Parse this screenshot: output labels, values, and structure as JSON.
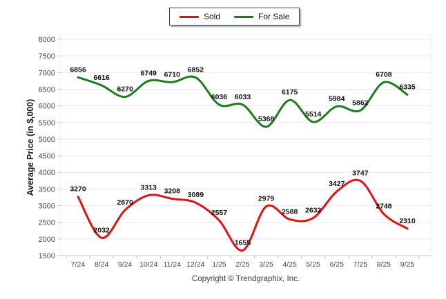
{
  "legend": {
    "items": [
      {
        "label": "Sold",
        "color": "#e01212"
      },
      {
        "label": "For Sale",
        "color": "#1e7a1e"
      }
    ]
  },
  "y_axis_title": "Average Price (in $,000)",
  "footer": {
    "copyright": "Copyright © Trendgraphix, Inc."
  },
  "chart_data": {
    "type": "line",
    "title": "",
    "xlabel": "",
    "ylabel": "Average Price (in $,000)",
    "categories": [
      "7/24",
      "8/24",
      "9/24",
      "10/24",
      "11/24",
      "12/24",
      "1/25",
      "2/25",
      "3/25",
      "4/25",
      "5/25",
      "6/25",
      "7/25",
      "8/25",
      "9/25"
    ],
    "series": [
      {
        "name": "Sold",
        "color": "#e01212",
        "values": [
          3270,
          2032,
          2870,
          3313,
          3208,
          3089,
          2557,
          1655,
          2979,
          2588,
          2632,
          3427,
          3747,
          2748,
          2310
        ]
      },
      {
        "name": "For Sale",
        "color": "#1e7a1e",
        "values": [
          6856,
          6616,
          6270,
          6749,
          6710,
          6852,
          6036,
          6033,
          5368,
          6175,
          5514,
          5984,
          5862,
          6708,
          6335
        ]
      }
    ],
    "ylim": [
      1500,
      8000
    ],
    "ytick_step": 500,
    "grid": true,
    "smooth": true,
    "legend_position": "top-center",
    "data_labels": true,
    "colors": {
      "grid_line": "#e8e8e8",
      "axis_line": "#c6c6c6",
      "y_minor_tick": "#b3c8dc",
      "tick_label": "#3a4656",
      "data_label": "#101010"
    }
  }
}
